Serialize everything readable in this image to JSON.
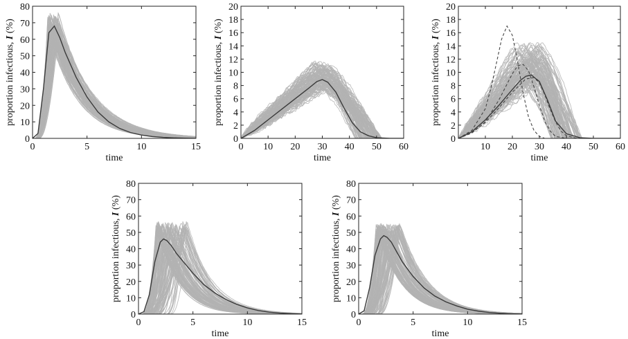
{
  "figure": {
    "panel_count": 5
  },
  "colors": {
    "ensemble": "#b3b3b3",
    "mean": "#3a3a3a",
    "axis": "#222222",
    "dashed": "#444444"
  },
  "chart_data": [
    {
      "type": "line",
      "xlabel": "time",
      "ylabel_prefix": "proportion infectious, ",
      "ylabel_var": "I",
      "ylabel_suffix": " (%)",
      "xlim": [
        0,
        15
      ],
      "ylim": [
        0,
        80
      ],
      "xticks": [
        0,
        5,
        10,
        15
      ],
      "yticks": [
        0,
        10,
        20,
        30,
        40,
        50,
        60,
        70,
        80
      ],
      "ensemble": {
        "runs": 120,
        "peak_time_range": [
          1.4,
          2.4
        ],
        "peak_range": [
          64,
          76
        ],
        "decay_range": [
          0.28,
          0.36
        ],
        "onset_range": [
          0.2,
          0.6
        ]
      },
      "series": [
        {
          "name": "mean",
          "x": [
            0,
            0.5,
            1,
            1.5,
            2,
            2.5,
            3,
            4,
            5,
            6,
            7,
            8,
            9,
            10,
            11,
            12,
            13,
            14,
            15
          ],
          "values": [
            0,
            3,
            30,
            64,
            68,
            61,
            52,
            37,
            25,
            16,
            10,
            6,
            3.5,
            2,
            1.1,
            0.6,
            0.3,
            0.15,
            0
          ]
        }
      ]
    },
    {
      "type": "line",
      "xlabel": "time",
      "ylabel_prefix": "proportion infectious, ",
      "ylabel_var": "I",
      "ylabel_suffix": " (%)",
      "xlim": [
        0,
        60
      ],
      "ylim": [
        0,
        20
      ],
      "xticks": [
        0,
        10,
        20,
        30,
        40,
        50,
        60
      ],
      "xtick_labels": [
        "0",
        "10",
        "20",
        "30",
        "40",
        "50",
        "60"
      ],
      "yticks": [
        0,
        2,
        4,
        6,
        8,
        10,
        12,
        14,
        16,
        18,
        20
      ],
      "ensemble": {
        "runs": 120,
        "peak_time_range": [
          26,
          33
        ],
        "peak_range": [
          7.5,
          11.5
        ],
        "rise_range": [
          0.8,
          1.2
        ],
        "end_range": [
          42,
          52
        ]
      },
      "series": [
        {
          "name": "mean",
          "x": [
            0,
            5,
            10,
            15,
            20,
            25,
            28,
            30,
            32,
            35,
            38,
            41,
            44,
            47,
            50,
            55,
            60
          ],
          "values": [
            0,
            1.2,
            2.8,
            4.4,
            6.0,
            7.6,
            8.6,
            8.9,
            8.5,
            7.0,
            4.6,
            2.4,
            1.0,
            0.4,
            0.1,
            0,
            0
          ]
        }
      ]
    },
    {
      "type": "line",
      "xlabel": "time",
      "ylabel_prefix": "proportion infectious, ",
      "ylabel_var": "I",
      "ylabel_suffix": " (%)",
      "xlim": [
        0,
        60
      ],
      "ylim": [
        0,
        20
      ],
      "xticks": [
        0,
        10,
        20,
        30,
        40,
        50,
        60
      ],
      "xtick_labels": [
        "",
        "10",
        "20",
        "30",
        "40",
        "50",
        "60"
      ],
      "yticks": [
        0,
        2,
        4,
        6,
        8,
        10,
        12,
        14,
        16,
        18,
        20
      ],
      "ensemble": {
        "runs": 120,
        "peak_time_range": [
          20,
          32
        ],
        "peak_range": [
          8.5,
          14.5
        ],
        "rise_range": [
          0.9,
          1.3
        ],
        "end_range": [
          34,
          46
        ]
      },
      "series": [
        {
          "name": "mean",
          "x": [
            0,
            5,
            10,
            15,
            20,
            23,
            25,
            27,
            30,
            33,
            36,
            40,
            45,
            50,
            60
          ],
          "values": [
            0,
            1.0,
            2.8,
            5.0,
            7.4,
            8.8,
            9.4,
            9.6,
            8.6,
            5.8,
            2.6,
            0.7,
            0.1,
            0,
            0
          ]
        },
        {
          "name": "dashed-1",
          "x": [
            0,
            5,
            10,
            12,
            14,
            16,
            18,
            20,
            22,
            24,
            26,
            28,
            30,
            32
          ],
          "values": [
            0,
            1.2,
            4.5,
            7.5,
            11.2,
            15.0,
            17.0,
            15.6,
            11.5,
            6.8,
            3.2,
            1.2,
            0.3,
            0
          ]
        },
        {
          "name": "dashed-2",
          "x": [
            0,
            5,
            10,
            15,
            20,
            22,
            24,
            26,
            28,
            30,
            32,
            34,
            36,
            40
          ],
          "values": [
            0,
            0.8,
            2.5,
            5.8,
            9.8,
            11.0,
            11.2,
            10.2,
            7.8,
            5.0,
            2.6,
            1.1,
            0.3,
            0
          ]
        },
        {
          "name": "dashed-3",
          "x": [
            0,
            5,
            10,
            15,
            20,
            25,
            28,
            30,
            32,
            34,
            36,
            38,
            40,
            44
          ],
          "values": [
            0,
            0.9,
            2.4,
            4.6,
            7.0,
            9.0,
            9.2,
            8.4,
            6.6,
            4.4,
            2.5,
            1.1,
            0.4,
            0
          ]
        }
      ]
    },
    {
      "type": "line",
      "xlabel": "time",
      "ylabel_prefix": "proportion infectious, ",
      "ylabel_var": "I",
      "ylabel_suffix": " (%)",
      "xlim": [
        0,
        15
      ],
      "ylim": [
        0,
        80
      ],
      "xticks": [
        0,
        5,
        10,
        15
      ],
      "yticks": [
        0,
        10,
        20,
        30,
        40,
        50,
        60,
        70,
        80
      ],
      "ensemble": {
        "runs": 120,
        "peak_time_range": [
          1.6,
          4.6
        ],
        "peak_range": [
          50,
          57
        ],
        "decay_range": [
          0.38,
          0.5
        ],
        "onset_range": [
          0.3,
          3.0
        ]
      },
      "series": [
        {
          "name": "mean",
          "x": [
            0,
            0.5,
            1,
            1.5,
            2,
            2.3,
            2.6,
            3,
            3.5,
            4,
            5,
            6,
            7,
            8,
            9,
            10,
            11,
            12,
            13,
            14,
            15
          ],
          "values": [
            0,
            1.5,
            12,
            32,
            44,
            46,
            45,
            42,
            37,
            33,
            25,
            18,
            13,
            9,
            6,
            3.8,
            2.2,
            1.2,
            0.6,
            0.3,
            0
          ]
        }
      ]
    },
    {
      "type": "line",
      "xlabel": "time",
      "ylabel_prefix": "proportion infectious, ",
      "ylabel_var": "I",
      "ylabel_suffix": " (%)",
      "xlim": [
        0,
        15
      ],
      "ylim": [
        0,
        80
      ],
      "xticks": [
        0,
        5,
        10,
        15
      ],
      "yticks": [
        0,
        10,
        20,
        30,
        40,
        50,
        60,
        70,
        80
      ],
      "ensemble": {
        "runs": 120,
        "peak_time_range": [
          1.6,
          3.8
        ],
        "peak_range": [
          50,
          56
        ],
        "decay_range": [
          0.36,
          0.46
        ],
        "onset_range": [
          0.3,
          2.0
        ]
      },
      "series": [
        {
          "name": "mean",
          "x": [
            0,
            0.5,
            1,
            1.5,
            2,
            2.3,
            2.6,
            3,
            3.5,
            4,
            5,
            6,
            7,
            8,
            9,
            10,
            11,
            12,
            13,
            14,
            15
          ],
          "values": [
            0,
            2,
            16,
            36,
            46,
            48,
            47,
            44,
            38,
            32,
            23,
            16,
            11,
            7.5,
            5,
            3,
            1.8,
            1,
            0.5,
            0.2,
            0
          ]
        }
      ]
    }
  ]
}
